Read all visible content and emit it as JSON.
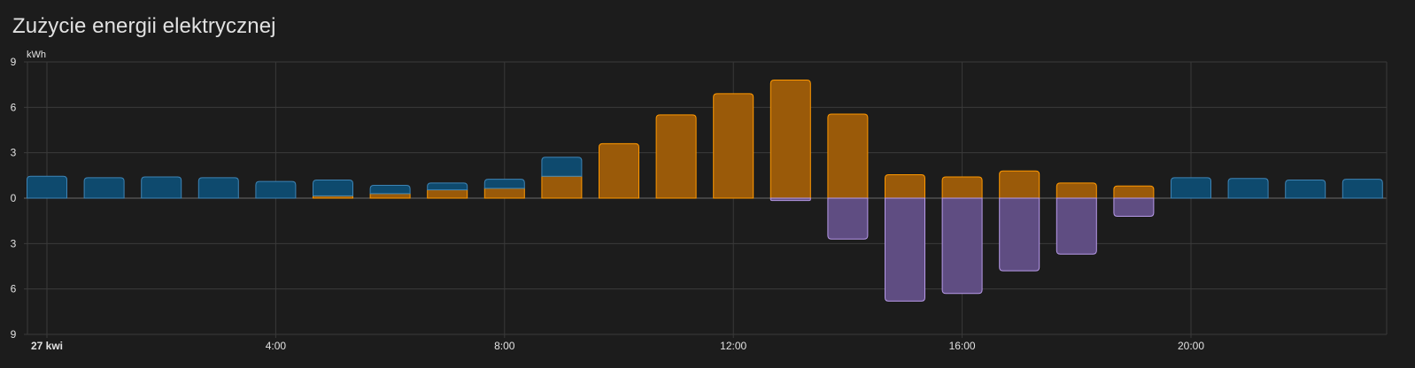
{
  "card": {
    "title": "Zużycie energii elektrycznej"
  },
  "chart_data": {
    "type": "bar",
    "stacked": true,
    "unit": "kWh",
    "ylim": [
      -9,
      9
    ],
    "y_ticks": [
      9,
      6,
      3,
      0,
      3,
      6,
      9
    ],
    "x_ticks": [
      "27 kwi",
      "4:00",
      "8:00",
      "12:00",
      "16:00",
      "20:00"
    ],
    "x_tick_hours": [
      0,
      4,
      8,
      12,
      16,
      20
    ],
    "grid": true,
    "colors": {
      "grid": "#0e4a6e",
      "grid_border": "#3e84b5",
      "solar": "#9a5a09",
      "solar_border": "#ff9800",
      "export": "#5f4d82",
      "export_border": "#b79ae8"
    },
    "hours": [
      0,
      1,
      2,
      3,
      4,
      5,
      6,
      7,
      8,
      9,
      10,
      11,
      12,
      13,
      14,
      15,
      16,
      17,
      18,
      19,
      20,
      21,
      22,
      23
    ],
    "series": [
      {
        "key": "solar",
        "values": [
          0,
          0,
          0,
          0,
          0,
          0.15,
          0.3,
          0.55,
          0.65,
          1.45,
          3.6,
          5.5,
          6.9,
          7.8,
          5.55,
          1.55,
          1.4,
          1.8,
          1.0,
          0.8,
          0,
          0,
          0,
          0
        ]
      },
      {
        "key": "grid",
        "values": [
          1.45,
          1.35,
          1.4,
          1.35,
          1.1,
          1.05,
          0.55,
          0.45,
          0.6,
          1.25,
          0,
          0,
          0,
          0,
          0,
          0,
          0,
          0,
          0,
          0,
          1.35,
          1.3,
          1.2,
          1.25
        ]
      },
      {
        "key": "export",
        "values": [
          0,
          0,
          0,
          0,
          0,
          0,
          0,
          0,
          0,
          0,
          0,
          0,
          0,
          -0.15,
          -2.7,
          -6.8,
          -6.3,
          -4.8,
          -3.7,
          -1.2,
          0,
          0,
          0,
          0
        ]
      }
    ]
  }
}
